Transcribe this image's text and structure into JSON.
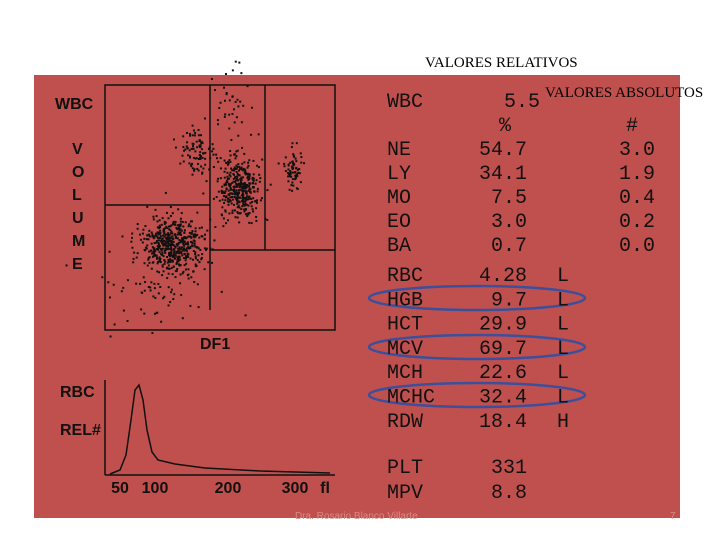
{
  "header": {
    "relative": "VALORES RELATIVOS",
    "absolute": "VALORES ABSOLUTOS"
  },
  "plot": {
    "wbc_label": "WBC",
    "volume_letters": [
      "V",
      "O",
      "L",
      "U",
      "M",
      "E"
    ],
    "df_label": "DF1",
    "rbc_label": "RBC",
    "rel_label": "REL#",
    "x_ticks": [
      "50",
      "100",
      "200",
      "300",
      "fl"
    ]
  },
  "results": {
    "wbc": {
      "label": "WBC",
      "value": "5.5"
    },
    "col_headers": [
      "%",
      "#"
    ],
    "differential": [
      [
        "NE",
        "54.7",
        "3.0"
      ],
      [
        "LY",
        "34.1",
        "1.9"
      ],
      [
        "MO",
        "7.5",
        "0.4"
      ],
      [
        "EO",
        "3.0",
        "0.2"
      ],
      [
        "BA",
        "0.7",
        "0.0"
      ]
    ],
    "rbc": [
      [
        "RBC",
        "4.28",
        "L"
      ],
      [
        "HGB",
        "9.7",
        "L"
      ],
      [
        "HCT",
        "29.9",
        "L"
      ],
      [
        "MCV",
        "69.7",
        "L"
      ],
      [
        "MCH",
        "22.6",
        "L"
      ],
      [
        "MCHC",
        "32.4",
        "L"
      ],
      [
        "RDW",
        "18.4",
        "H"
      ]
    ],
    "platelets": [
      [
        "PLT",
        "331"
      ],
      [
        "MPV",
        "8.8"
      ]
    ]
  },
  "footer": {
    "author": "Dra. Rosario Blanco Villarte",
    "page": "7"
  }
}
